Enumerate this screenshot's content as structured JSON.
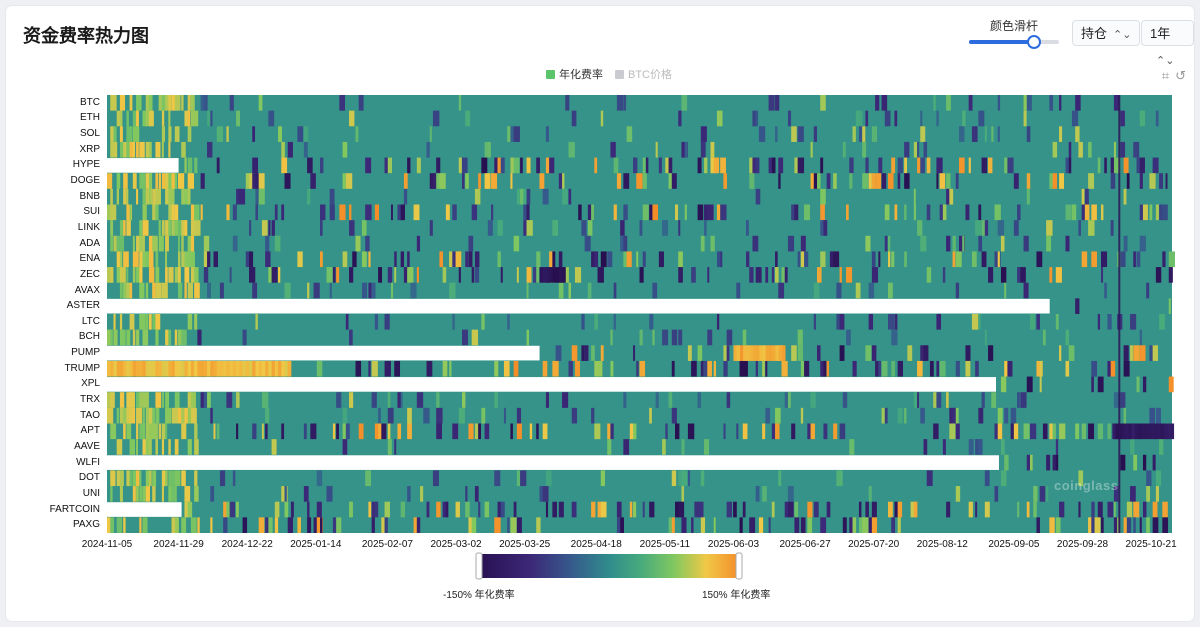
{
  "header": {
    "title": "资金费率热力图",
    "slider_label": "颜色滑杆",
    "slider_value": 0.72,
    "select_type": "持仓",
    "select_range": "1年"
  },
  "legend": {
    "items": [
      {
        "label": "年化费率",
        "color": "#5cc56b",
        "active": true
      },
      {
        "label": "BTC价格",
        "color": "#c9cbd0",
        "active": false
      }
    ]
  },
  "watermark": "coinglass",
  "chart_data": {
    "type": "heatmap",
    "title": "资金费率热力图",
    "series_label": "年化费率",
    "rows": [
      "BTC",
      "ETH",
      "SOL",
      "XRP",
      "HYPE",
      "DOGE",
      "BNB",
      "SUI",
      "LINK",
      "ADA",
      "ENA",
      "ZEC",
      "AVAX",
      "ASTER",
      "LTC",
      "BCH",
      "PUMP",
      "TRUMP",
      "XPL",
      "TRX",
      "TAO",
      "APT",
      "AAVE",
      "WLFI",
      "DOT",
      "UNI",
      "FARTCOIN",
      "PAXG"
    ],
    "x_ticks": [
      "2024-11-05",
      "2024-11-29",
      "2024-12-22",
      "2025-01-14",
      "2025-02-07",
      "2025-03-02",
      "2025-03-25",
      "2025-04-18",
      "2025-05-11",
      "2025-06-03",
      "2025-06-27",
      "2025-07-20",
      "2025-08-12",
      "2025-09-05",
      "2025-09-28",
      "2025-10-21"
    ],
    "x_range": [
      "2024-11-05",
      "2025-10-28"
    ],
    "value_range": [
      -150,
      150
    ],
    "colorbar": {
      "min_label": "-150% 年化费率",
      "max_label": "150% 年化费率"
    },
    "data_start": {
      "HYPE": "2024-11-29",
      "ASTER": "2025-09-17",
      "PUMP": "2025-03-30",
      "XPL": "2025-08-30",
      "WLFI": "2025-08-31",
      "FARTCOIN": "2024-11-30"
    },
    "notable_regions": [
      {
        "row": "ZEC",
        "from": "2025-03-30",
        "to": "2025-04-07",
        "value": -140
      },
      {
        "row": "PUMP",
        "from": "2025-06-03",
        "to": "2025-06-20",
        "value": 130
      },
      {
        "row": "TRUMP",
        "from": "2024-11-05",
        "to": "2025-01-05",
        "value": 120
      },
      {
        "row": "APT",
        "from": "2025-10-08",
        "to": "2025-10-28",
        "value": -130
      }
    ]
  }
}
